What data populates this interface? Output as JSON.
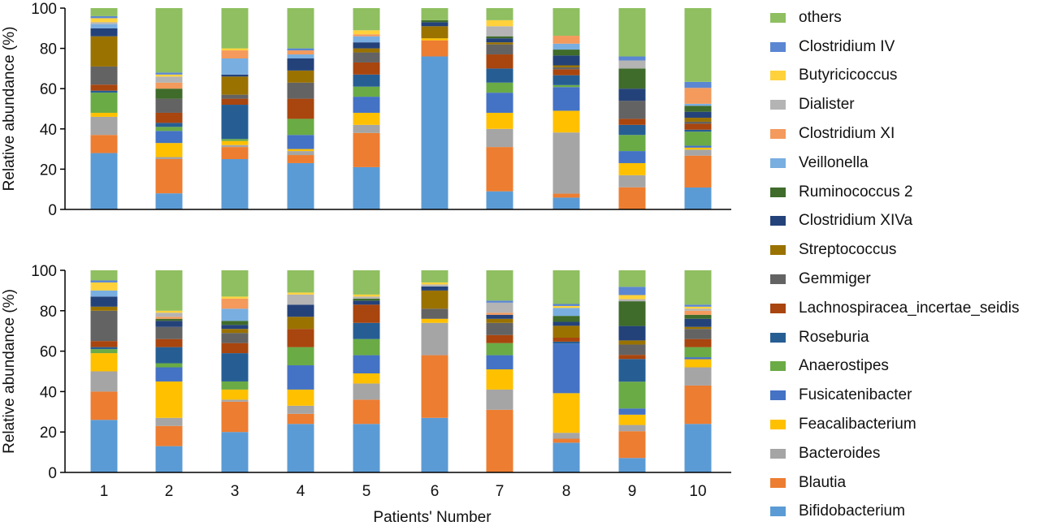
{
  "chart_data": [
    {
      "type": "bar",
      "stacked": true,
      "title": "",
      "xlabel": "",
      "ylabel": "Relative abundance (%)",
      "ylim": [
        0,
        100
      ],
      "yticks": [
        "0",
        "20",
        "40",
        "60",
        "80",
        "100"
      ],
      "categories": [
        "1",
        "2",
        "3",
        "4",
        "5",
        "6",
        "7",
        "8",
        "9",
        "10"
      ],
      "series": [
        {
          "name": "Bifidobacterium",
          "values": [
            28,
            8,
            25,
            23,
            21,
            76,
            9,
            6,
            0,
            11
          ]
        },
        {
          "name": "Blautia",
          "values": [
            9,
            17,
            6,
            4,
            17,
            8,
            22,
            2,
            11,
            16
          ]
        },
        {
          "name": "Bacteroides",
          "values": [
            9,
            1,
            1,
            2,
            4,
            0,
            9,
            31,
            6,
            3
          ]
        },
        {
          "name": "Feacalibacterium",
          "values": [
            2,
            7,
            2,
            1,
            6,
            1,
            8,
            11,
            6,
            1
          ]
        },
        {
          "name": "Fusicatenibacter",
          "values": [
            0,
            6,
            0,
            7,
            8,
            0,
            10,
            12,
            6,
            1
          ]
        },
        {
          "name": "Anaerostipes",
          "values": [
            10,
            2,
            1,
            8,
            5,
            0,
            5,
            1,
            8,
            7
          ]
        },
        {
          "name": "Roseburia",
          "values": [
            1,
            2,
            17,
            0,
            6,
            0,
            7,
            5,
            5,
            1
          ]
        },
        {
          "name": "Lachnospiracea_incertae_seidis",
          "values": [
            3,
            5,
            3,
            10,
            6,
            0,
            7,
            3,
            3,
            3
          ]
        },
        {
          "name": "Gemmiger",
          "values": [
            9,
            7,
            2,
            8,
            5,
            0,
            5,
            1,
            9,
            1
          ]
        },
        {
          "name": "Streptococcus",
          "values": [
            15,
            0,
            9,
            6,
            2,
            6,
            1,
            1,
            0,
            2
          ]
        },
        {
          "name": "Clostridium XIVa",
          "values": [
            4,
            0,
            1,
            6,
            3,
            2,
            2,
            5,
            6,
            3
          ]
        },
        {
          "name": "Ruminococcus 2",
          "values": [
            0,
            5,
            0,
            0,
            0,
            1,
            1,
            3,
            10,
            3
          ]
        },
        {
          "name": "Veillonella",
          "values": [
            2,
            0,
            8,
            2,
            3,
            0,
            0,
            3,
            0,
            1
          ]
        },
        {
          "name": "Clostridium XI",
          "values": [
            0,
            3,
            4,
            2,
            1,
            0,
            0,
            4,
            0,
            8
          ]
        },
        {
          "name": "Dialister",
          "values": [
            1,
            3,
            0,
            0,
            0,
            0,
            5,
            0,
            4,
            0
          ]
        },
        {
          "name": "Butyricicoccus",
          "values": [
            2,
            1,
            1,
            0,
            2,
            0,
            3,
            0,
            0,
            0
          ]
        },
        {
          "name": "Clostridium IV",
          "values": [
            1,
            1,
            0,
            1,
            0,
            0,
            0,
            0,
            2,
            3
          ]
        },
        {
          "name": "others",
          "values": [
            4,
            32,
            20,
            20,
            11,
            6,
            6,
            14,
            24,
            37
          ]
        }
      ]
    },
    {
      "type": "bar",
      "stacked": true,
      "title": "",
      "xlabel": "Patients' Number",
      "ylabel": "Relative abundance (%)",
      "ylim": [
        0,
        100
      ],
      "yticks": [
        "0",
        "20",
        "40",
        "60",
        "80",
        "100"
      ],
      "categories": [
        "1",
        "2",
        "3",
        "4",
        "5",
        "6",
        "7",
        "8",
        "9",
        "10"
      ],
      "series": [
        {
          "name": "Bifidobacterium",
          "values": [
            26,
            13,
            20,
            24,
            24,
            27,
            0,
            15,
            7,
            24
          ]
        },
        {
          "name": "Blautia",
          "values": [
            14,
            10,
            15,
            5,
            12,
            31,
            31,
            2,
            13,
            19
          ]
        },
        {
          "name": "Bacteroides",
          "values": [
            10,
            4,
            1,
            4,
            8,
            16,
            10,
            3,
            3,
            9
          ]
        },
        {
          "name": "Feacalibacterium",
          "values": [
            9,
            18,
            5,
            8,
            5,
            2,
            10,
            20,
            5,
            4
          ]
        },
        {
          "name": "Fusicatenibacter",
          "values": [
            0,
            7,
            0,
            12,
            9,
            0,
            7,
            25,
            3,
            1
          ]
        },
        {
          "name": "Anaerostipes",
          "values": [
            2,
            2,
            4,
            9,
            8,
            0,
            6,
            0,
            13,
            5
          ]
        },
        {
          "name": "Roseburia",
          "values": [
            1,
            8,
            14,
            0,
            8,
            0,
            0,
            1,
            11,
            0
          ]
        },
        {
          "name": "Lachnospiracea_incertae_seidis",
          "values": [
            3,
            4,
            5,
            9,
            9,
            0,
            4,
            2,
            2,
            4
          ]
        },
        {
          "name": "Gemmiger",
          "values": [
            15,
            6,
            5,
            0,
            0,
            5,
            6,
            0,
            5,
            5
          ]
        },
        {
          "name": "Streptococcus",
          "values": [
            2,
            0,
            2,
            6,
            0,
            9,
            2,
            6,
            2,
            1
          ]
        },
        {
          "name": "Clostridium XIVa",
          "values": [
            5,
            3,
            2,
            6,
            2,
            2,
            2,
            2,
            7,
            4
          ]
        },
        {
          "name": "Ruminococcus 2",
          "values": [
            0,
            1,
            2,
            0,
            1,
            0,
            0,
            3,
            12,
            2
          ]
        },
        {
          "name": "Veillonella",
          "values": [
            3,
            0,
            6,
            0,
            0,
            0,
            0,
            4,
            0,
            0
          ]
        },
        {
          "name": "Clostridium XI",
          "values": [
            0,
            1,
            5,
            0,
            0,
            0,
            1,
            0,
            0,
            2
          ]
        },
        {
          "name": "Dialister",
          "values": [
            0,
            2,
            0,
            5,
            1,
            1,
            5,
            0,
            1,
            1
          ]
        },
        {
          "name": "Butyricicoccus",
          "values": [
            4,
            1,
            1,
            1,
            1,
            1,
            0,
            1,
            2,
            1
          ]
        },
        {
          "name": "Clostridium IV",
          "values": [
            1,
            0,
            0,
            0,
            0,
            0,
            1,
            1,
            4,
            1
          ]
        },
        {
          "name": "others",
          "values": [
            5,
            20,
            13,
            11,
            12,
            6,
            15,
            17,
            8,
            17
          ]
        }
      ]
    }
  ],
  "x_axis_title": "Patients' Number",
  "legend": {
    "placement": "right",
    "items": [
      {
        "name": "others",
        "color": "#8fbf60"
      },
      {
        "name": "Clostridium IV",
        "color": "#5b86d2"
      },
      {
        "name": "Butyricicoccus",
        "color": "#ffd23c"
      },
      {
        "name": "Dialister",
        "color": "#b4b4b4"
      },
      {
        "name": "Clostridium XI",
        "color": "#f39a5c"
      },
      {
        "name": "Veillonella",
        "color": "#79aee0"
      },
      {
        "name": "Ruminococcus 2",
        "color": "#3f6b2b"
      },
      {
        "name": "Clostridium XIVa",
        "color": "#24427a"
      },
      {
        "name": "Streptococcus",
        "color": "#9a7200"
      },
      {
        "name": "Gemmiger",
        "color": "#636363"
      },
      {
        "name": "Lachnospiracea_incertae_seidis",
        "color": "#a9450e"
      },
      {
        "name": "Roseburia",
        "color": "#265e93"
      },
      {
        "name": "Anaerostipes",
        "color": "#6aab45"
      },
      {
        "name": "Fusicatenibacter",
        "color": "#4472c4"
      },
      {
        "name": "Feacalibacterium",
        "color": "#ffc000"
      },
      {
        "name": "Bacteroides",
        "color": "#a5a5a5"
      },
      {
        "name": "Blautia",
        "color": "#ed7d31"
      },
      {
        "name": "Bifidobacterium",
        "color": "#5b9bd5"
      }
    ]
  }
}
